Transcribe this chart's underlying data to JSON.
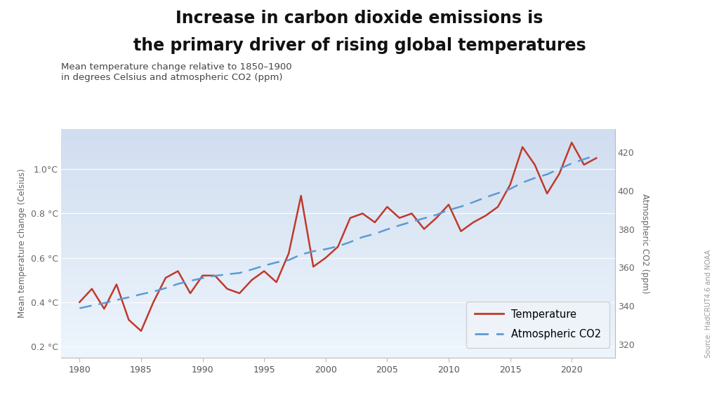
{
  "title_line1": "Increase in carbon dioxide emissions is",
  "title_line2": "the primary driver of rising global temperatures",
  "subtitle": "Mean temperature change relative to 1850–1900\nin degrees Celsius and atmospheric CO2 (ppm)",
  "source_text": "Source: HadCRUT4.6 and NOAA",
  "ylabel_left": "Mean temperature change (Celsius)",
  "ylabel_right": "Atmospheric CO2 (ppm)",
  "years": [
    1980,
    1981,
    1982,
    1983,
    1984,
    1985,
    1986,
    1987,
    1988,
    1989,
    1990,
    1991,
    1992,
    1993,
    1994,
    1995,
    1996,
    1997,
    1998,
    1999,
    2000,
    2001,
    2002,
    2003,
    2004,
    2005,
    2006,
    2007,
    2008,
    2009,
    2010,
    2011,
    2012,
    2013,
    2014,
    2015,
    2016,
    2017,
    2018,
    2019,
    2020,
    2021,
    2022
  ],
  "temperature": [
    0.4,
    0.46,
    0.37,
    0.48,
    0.32,
    0.27,
    0.4,
    0.51,
    0.54,
    0.44,
    0.52,
    0.52,
    0.46,
    0.44,
    0.5,
    0.54,
    0.49,
    0.62,
    0.88,
    0.56,
    0.6,
    0.65,
    0.78,
    0.8,
    0.76,
    0.83,
    0.78,
    0.8,
    0.73,
    0.78,
    0.84,
    0.72,
    0.76,
    0.79,
    0.83,
    0.93,
    1.1,
    1.02,
    0.89,
    0.98,
    1.12,
    1.02,
    1.05
  ],
  "co2": [
    338.7,
    340.1,
    341.4,
    343.0,
    344.4,
    346.0,
    347.4,
    349.2,
    351.4,
    353.0,
    354.4,
    355.6,
    356.4,
    357.1,
    358.9,
    360.9,
    362.6,
    363.8,
    366.7,
    368.4,
    369.5,
    371.0,
    373.2,
    375.8,
    377.5,
    379.8,
    381.9,
    383.8,
    385.6,
    387.4,
    389.9,
    391.7,
    394.0,
    396.5,
    398.7,
    400.9,
    404.2,
    406.6,
    408.5,
    411.4,
    414.2,
    416.4,
    418.6
  ],
  "temp_color": "#C0392B",
  "co2_color": "#5B9BD5",
  "ylim_temp": [
    0.15,
    1.18
  ],
  "ylim_co2": [
    313,
    432
  ],
  "yticks_temp": [
    0.2,
    0.4,
    0.6,
    0.8,
    1.0
  ],
  "ytick_labels_temp": [
    "0.2 °C",
    "0.4 °C",
    "0.6 °C",
    "0.8 °C",
    "1.0°C"
  ],
  "yticks_co2": [
    320,
    340,
    360,
    380,
    400,
    420
  ],
  "xticks": [
    1980,
    1985,
    1990,
    1995,
    2000,
    2005,
    2010,
    2015,
    2020
  ],
  "xlim": [
    1978.5,
    2023.5
  ],
  "bg_color_top": "#D0DCF0",
  "bg_color_bottom": "#EEF3FA",
  "figure_bg": "#FFFFFF",
  "title_fontsize": 17,
  "subtitle_fontsize": 9.5,
  "axis_label_fontsize": 8.5,
  "tick_fontsize": 9,
  "legend_fontsize": 10.5,
  "source_fontsize": 7
}
